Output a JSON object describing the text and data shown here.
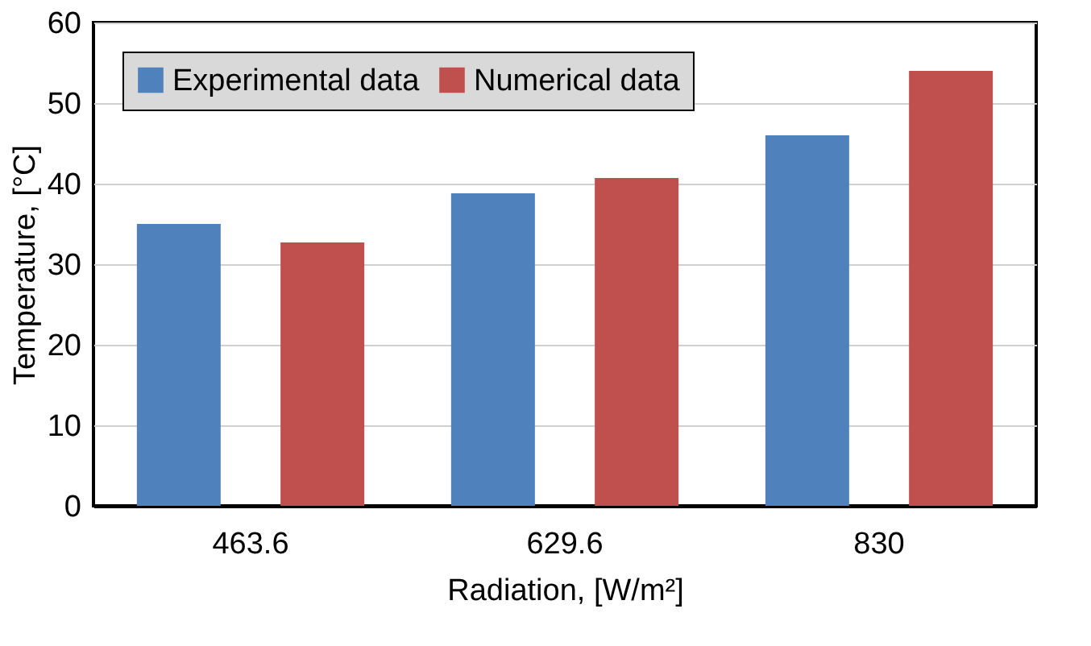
{
  "chart_data": {
    "type": "bar",
    "xlabel": "Radiation, [W/m²]",
    "ylabel": "Temperature, [°C]",
    "categories": [
      "463.6",
      "629.6",
      "830"
    ],
    "series": [
      {
        "name": "Experimental data",
        "color": "#4f81bd",
        "values": [
          35,
          38.8,
          46
        ]
      },
      {
        "name": "Numerical data",
        "color": "#c0504d",
        "values": [
          32.7,
          40.7,
          54
        ]
      }
    ],
    "ylim": [
      0,
      60
    ],
    "yticks": [
      0,
      10,
      20,
      30,
      40,
      50,
      60
    ],
    "grid": "y",
    "legend": "top left"
  }
}
